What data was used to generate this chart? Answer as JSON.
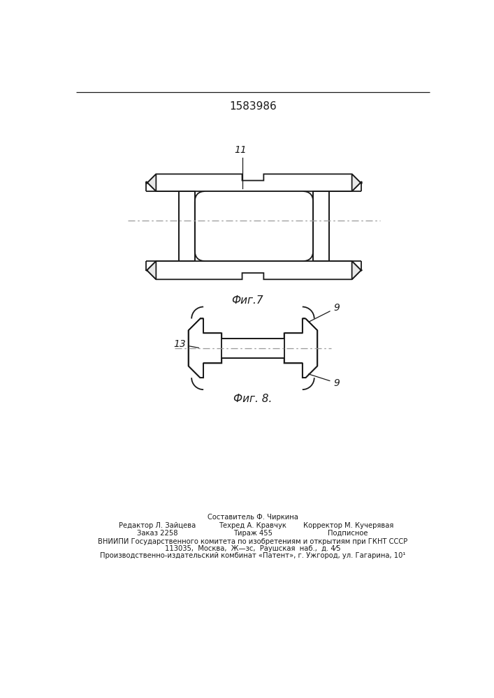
{
  "title_number": "1583986",
  "fig7_label": "Фиг.7",
  "fig8_label": "Фиг. 8.",
  "label_11": "11",
  "label_9a": "9",
  "label_9b": "9",
  "label_13": "13",
  "line_color": "#1a1a1a",
  "bg_color": "#ffffff",
  "dash_dot_color": "#999999",
  "footer_col1_line1": "Редактор Л. Зайцева",
  "footer_col1_line2": "Заказ 2258",
  "footer_col2_line0": "Составитель Ф. Чиркина",
  "footer_col2_line1": "Техред А. Кравчук",
  "footer_col2_line2": "Тираж 455",
  "footer_col3_line1": "Корректор М. Кучерявая",
  "footer_col3_line2": "Подписное",
  "footer_vniip": "ВНИИПИ Государственного комитета по изобретениям и открытиям при ГКНТ СССР",
  "footer_addr": "113035,  Москва,  Ж—зс,  Раушская  наб.,  д. 4⁄5",
  "footer_patent": "Производственно-издательский комбинат «Патент», г. Ужгород, ул. Гагарина, 10¹"
}
